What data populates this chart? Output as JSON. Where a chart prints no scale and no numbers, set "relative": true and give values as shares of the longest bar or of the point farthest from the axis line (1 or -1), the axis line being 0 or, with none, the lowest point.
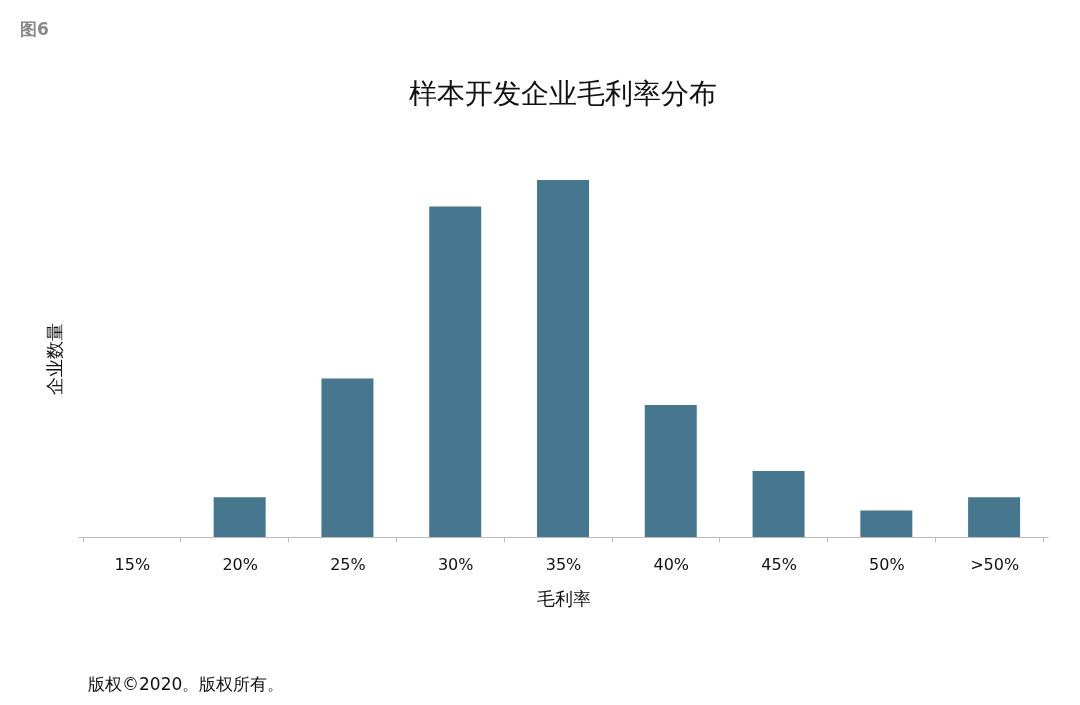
{
  "chart_data": {
    "type": "bar",
    "title": "样本开发企业毛利率分布",
    "xlabel": "毛利率",
    "ylabel": "企业数量",
    "categories": [
      "15%",
      "20%",
      "25%",
      "30%",
      "35%",
      "40%",
      "45%",
      "50%",
      ">50%"
    ],
    "values": [
      0,
      0.111,
      0.444,
      0.926,
      1,
      0.37,
      0.185,
      0.074,
      0.111
    ],
    "color": "#46778e",
    "relative": true,
    "annotations": [
      "图6",
      "版权©2020。版权所有。"
    ]
  }
}
